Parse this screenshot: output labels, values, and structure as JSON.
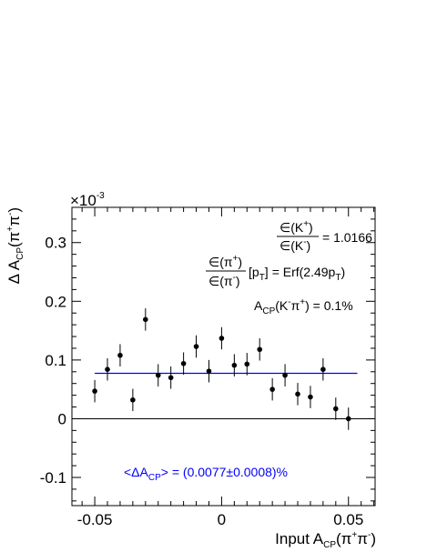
{
  "chart_data": {
    "type": "scatter",
    "xlabel": {
      "main": "Input A",
      "sub": "CP",
      "tail": "(π",
      "sup1": "+",
      "mid": "π",
      "sup2": "-",
      "end": ")"
    },
    "ylabel": {
      "main": "Δ A",
      "sub": "CP",
      "tail": "(π",
      "sup1": "+",
      "mid": "π",
      "sup2": "-",
      "end": ")"
    },
    "y_multiplier": {
      "base": "×10",
      "exp": "-3"
    },
    "xlim": [
      -0.059,
      0.0605
    ],
    "ylim": [
      -0.148,
      0.36
    ],
    "x_ticks": [
      {
        "v": -0.05,
        "label": "-0.05"
      },
      {
        "v": 0,
        "label": "0"
      },
      {
        "v": 0.05,
        "label": "0.05"
      }
    ],
    "y_ticks": [
      {
        "v": -0.1,
        "label": "-0.1"
      },
      {
        "v": 0,
        "label": "0"
      },
      {
        "v": 0.1,
        "label": "0.1"
      },
      {
        "v": 0.2,
        "label": "0.2"
      },
      {
        "v": 0.3,
        "label": "0.3"
      }
    ],
    "points": [
      {
        "x": -0.05,
        "y": 0.047,
        "err": 0.019
      },
      {
        "x": -0.045,
        "y": 0.084,
        "err": 0.019
      },
      {
        "x": -0.04,
        "y": 0.108,
        "err": 0.019
      },
      {
        "x": -0.035,
        "y": 0.032,
        "err": 0.019
      },
      {
        "x": -0.03,
        "y": 0.169,
        "err": 0.019
      },
      {
        "x": -0.025,
        "y": 0.074,
        "err": 0.019
      },
      {
        "x": -0.02,
        "y": 0.07,
        "err": 0.019
      },
      {
        "x": -0.015,
        "y": 0.094,
        "err": 0.019
      },
      {
        "x": -0.01,
        "y": 0.123,
        "err": 0.019
      },
      {
        "x": -0.005,
        "y": 0.081,
        "err": 0.019
      },
      {
        "x": 0.0,
        "y": 0.137,
        "err": 0.019
      },
      {
        "x": 0.005,
        "y": 0.091,
        "err": 0.019
      },
      {
        "x": 0.01,
        "y": 0.093,
        "err": 0.019
      },
      {
        "x": 0.015,
        "y": 0.118,
        "err": 0.019
      },
      {
        "x": 0.02,
        "y": 0.05,
        "err": 0.019
      },
      {
        "x": 0.025,
        "y": 0.074,
        "err": 0.019
      },
      {
        "x": 0.03,
        "y": 0.042,
        "err": 0.019
      },
      {
        "x": 0.035,
        "y": 0.037,
        "err": 0.019
      },
      {
        "x": 0.04,
        "y": 0.084,
        "err": 0.019
      },
      {
        "x": 0.045,
        "y": 0.017,
        "err": 0.019
      },
      {
        "x": 0.05,
        "y": 0.0,
        "err": 0.019
      }
    ],
    "fit_line": {
      "x": [
        -0.05,
        0.0535
      ],
      "y": 0.0773,
      "color": "#0000ff"
    },
    "zero_line": 0,
    "grid": false,
    "legend": "none",
    "annotations": {
      "eff_ratio": {
        "e": "∈",
        "k": "(K",
        "ksup": "+",
        "k_end": ")",
        "kminus": "(K",
        "kminus_sup": "-",
        "kminus_end": ")",
        "value": "= 1.0166"
      },
      "eff_pi": {
        "num": "∈(π",
        "num_sup": "+",
        "num_end": ")",
        "den": "∈(π",
        "den_sup": "-",
        "den_end": ")",
        "pt": "[p",
        "pt_sub": "T",
        "pt_end": "]",
        "rhs": "= Erf(2.49p",
        "rhs_sub": "T",
        "rhs_end": ")"
      },
      "acp_kpi": {
        "main": "A",
        "sub": "CP",
        "paren": "(K",
        "sup1": "-",
        "mid": "π",
        "sup2": "+",
        "rhs": ") = 0.1%"
      },
      "mean": {
        "text_pre": "<ΔA",
        "sub": "CP",
        "text_post": "> = (0.0077±0.0008)%",
        "color": "#0000ff"
      }
    }
  }
}
